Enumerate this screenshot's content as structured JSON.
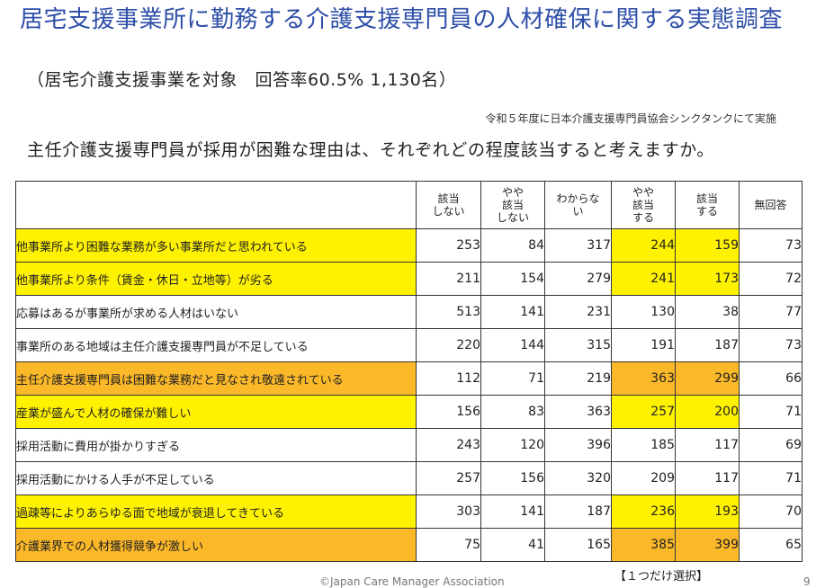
{
  "title": "居宅支援事業所に勤務する介護支援専門員の人材確保に関する実態調査",
  "subtitle": "（居宅介護支援事業を対象　回答率60.5% 1,130名）",
  "source": "令和５年度に日本介護支援専門員協会シンクタンクにて実施",
  "question": "主任介護支援専門員が採用が困難な理由は、それぞれどの程度該当すると考えますか。",
  "table": {
    "headers": [
      "該当\nしない",
      "やや\n該当\nしない",
      "わからな\nい",
      "やや\n該当\nする",
      "該当\nする",
      "無回答"
    ],
    "rows": [
      {
        "label": "他事業所より困難な業務が多い事業所だと思われている",
        "values": [
          "253",
          "84",
          "317",
          "244",
          "159",
          "73"
        ],
        "highlight": "yellow"
      },
      {
        "label": "他事業所より条件（賃金・休日・立地等）が劣る",
        "values": [
          "211",
          "154",
          "279",
          "241",
          "173",
          "72"
        ],
        "highlight": "yellow"
      },
      {
        "label": "応募はあるが事業所が求める人材はいない",
        "values": [
          "513",
          "141",
          "231",
          "130",
          "38",
          "77"
        ],
        "highlight": "none"
      },
      {
        "label": "事業所のある地域は主任介護支援専門員が不足している",
        "values": [
          "220",
          "144",
          "315",
          "191",
          "187",
          "73"
        ],
        "highlight": "none"
      },
      {
        "label": "主任介護支援専門員は困難な業務だと見なされ敬遠されている",
        "values": [
          "112",
          "71",
          "219",
          "363",
          "299",
          "66"
        ],
        "highlight": "orange"
      },
      {
        "label": "産業が盛んで人材の確保が難しい",
        "values": [
          "156",
          "83",
          "363",
          "257",
          "200",
          "71"
        ],
        "highlight": "yellow"
      },
      {
        "label": "採用活動に費用が掛かりすぎる",
        "values": [
          "243",
          "120",
          "396",
          "185",
          "117",
          "69"
        ],
        "highlight": "none"
      },
      {
        "label": "採用活動にかける人手が不足している",
        "values": [
          "257",
          "156",
          "320",
          "209",
          "117",
          "71"
        ],
        "highlight": "none"
      },
      {
        "label": "過疎等によりあらゆる面で地域が衰退してきている",
        "values": [
          "303",
          "141",
          "187",
          "236",
          "193",
          "70"
        ],
        "highlight": "yellow"
      },
      {
        "label": "介護業界での人材獲得競争が激しい",
        "values": [
          "75",
          "41",
          "165",
          "385",
          "399",
          "65"
        ],
        "highlight": "orange"
      }
    ]
  },
  "note": "【１つだけ選択】",
  "footer": "©Japan Care Manager Association",
  "page_number": "9",
  "colors": {
    "title": "#2e4ea8",
    "highlight_yellow": "#fff200",
    "highlight_orange": "#fbb829"
  }
}
